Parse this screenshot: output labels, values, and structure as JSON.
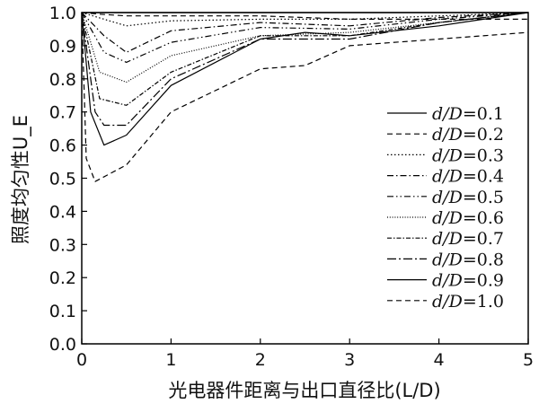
{
  "chart_data": {
    "type": "line",
    "title": "",
    "xlabel": "光电器件距离与出口直径比(L/D)",
    "ylabel": "照度均匀性U_E",
    "xlim": [
      0,
      5
    ],
    "ylim": [
      0,
      1.0
    ],
    "xticks": [
      "0",
      "1",
      "2",
      "3",
      "4",
      "5"
    ],
    "yticks": [
      "0.0",
      "0.1",
      "0.2",
      "0.3",
      "0.4",
      "0.5",
      "0.6",
      "0.7",
      "0.8",
      "0.9",
      "1.0"
    ],
    "legend_position": "right",
    "series": [
      {
        "name": "d/D=0.1",
        "dash": "solid",
        "points": [
          [
            0.05,
            1.0
          ],
          [
            0.25,
            1.0
          ],
          [
            0.5,
            1.0
          ],
          [
            1,
            1.0
          ],
          [
            2,
            1.0
          ],
          [
            3,
            1.0
          ],
          [
            4,
            1.0
          ],
          [
            5,
            1.0
          ]
        ]
      },
      {
        "name": "d/D=0.2",
        "dash": "dashed",
        "points": [
          [
            0,
            1.0
          ],
          [
            0.2,
            0.995
          ],
          [
            0.5,
            0.99
          ],
          [
            1,
            0.99
          ],
          [
            2,
            0.99
          ],
          [
            3,
            0.98
          ],
          [
            4,
            0.98
          ],
          [
            5,
            0.98
          ]
        ]
      },
      {
        "name": "d/D=0.3",
        "dash": "dotted",
        "points": [
          [
            0,
            1.0
          ],
          [
            0.25,
            0.98
          ],
          [
            0.5,
            0.96
          ],
          [
            1,
            0.975
          ],
          [
            2,
            0.98
          ],
          [
            3,
            0.98
          ],
          [
            4,
            0.99
          ],
          [
            5,
            1.0
          ]
        ]
      },
      {
        "name": "d/D=0.4",
        "dash": "dashdot",
        "points": [
          [
            0,
            1.0
          ],
          [
            0.25,
            0.93
          ],
          [
            0.5,
            0.88
          ],
          [
            1,
            0.945
          ],
          [
            2,
            0.97
          ],
          [
            3,
            0.96
          ],
          [
            4,
            0.985
          ],
          [
            5,
            1.0
          ]
        ]
      },
      {
        "name": "d/D=0.5",
        "dash": "dashdotdot",
        "points": [
          [
            0,
            1.0
          ],
          [
            0.25,
            0.88
          ],
          [
            0.5,
            0.85
          ],
          [
            1,
            0.91
          ],
          [
            2,
            0.955
          ],
          [
            3,
            0.95
          ],
          [
            4,
            0.98
          ],
          [
            5,
            1.0
          ]
        ]
      },
      {
        "name": "d/D=0.6",
        "dash": "finedot",
        "points": [
          [
            0,
            1.0
          ],
          [
            0.2,
            0.82
          ],
          [
            0.5,
            0.79
          ],
          [
            1,
            0.87
          ],
          [
            2,
            0.93
          ],
          [
            3,
            0.94
          ],
          [
            4,
            0.97
          ],
          [
            5,
            1.0
          ]
        ]
      },
      {
        "name": "d/D=0.7",
        "dash": "dashdot2",
        "points": [
          [
            0,
            1.0
          ],
          [
            0.2,
            0.74
          ],
          [
            0.5,
            0.72
          ],
          [
            1,
            0.82
          ],
          [
            2,
            0.93
          ],
          [
            3,
            0.93
          ],
          [
            4,
            0.97
          ],
          [
            5,
            1.0
          ]
        ]
      },
      {
        "name": "d/D=0.8",
        "dash": "longdashdot",
        "points": [
          [
            0,
            1.0
          ],
          [
            0.15,
            0.7
          ],
          [
            0.25,
            0.66
          ],
          [
            0.5,
            0.66
          ],
          [
            1,
            0.8
          ],
          [
            2,
            0.92
          ],
          [
            3,
            0.92
          ],
          [
            4,
            0.97
          ],
          [
            5,
            1.0
          ]
        ]
      },
      {
        "name": "d/D=0.9",
        "dash": "solid",
        "points": [
          [
            0,
            1.0
          ],
          [
            0.1,
            0.7
          ],
          [
            0.25,
            0.6
          ],
          [
            0.5,
            0.63
          ],
          [
            1,
            0.78
          ],
          [
            2,
            0.92
          ],
          [
            2.5,
            0.94
          ],
          [
            3,
            0.93
          ],
          [
            4,
            0.96
          ],
          [
            5,
            1.0
          ]
        ]
      },
      {
        "name": "d/D=1.0",
        "dash": "dashed",
        "points": [
          [
            0,
            1.0
          ],
          [
            0.05,
            0.56
          ],
          [
            0.15,
            0.49
          ],
          [
            0.5,
            0.54
          ],
          [
            1,
            0.7
          ],
          [
            2,
            0.83
          ],
          [
            2.5,
            0.84
          ],
          [
            3,
            0.9
          ],
          [
            4,
            0.92
          ],
          [
            5,
            0.94
          ]
        ]
      }
    ]
  }
}
